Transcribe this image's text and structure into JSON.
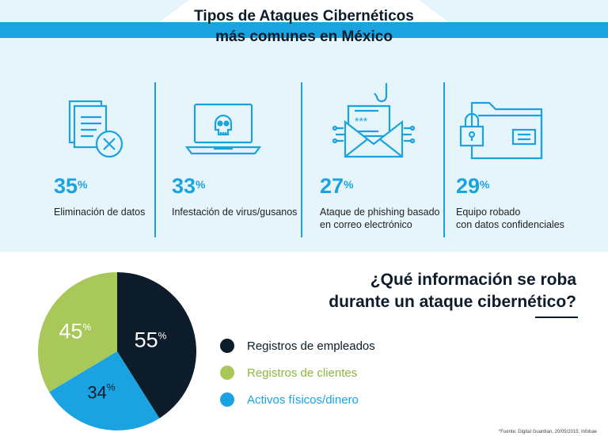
{
  "header": {
    "title_line1": "Tipos de Ataques Cibernéticos",
    "title_line2": "más comunes en México",
    "banner_color": "#1aa3e0"
  },
  "attacks": [
    {
      "value": "35",
      "unit": "%",
      "label_lines": [
        "Eliminación de datos"
      ],
      "icon": "document-delete-icon"
    },
    {
      "value": "33",
      "unit": "%",
      "label_lines": [
        "Infestación de virus/gusanos"
      ],
      "icon": "laptop-skull-icon"
    },
    {
      "value": "27",
      "unit": "%",
      "label_lines": [
        "Ataque de phishing basado",
        "en correo electrónico"
      ],
      "icon": "phishing-email-icon"
    },
    {
      "value": "29",
      "unit": "%",
      "label_lines": [
        "Equipo robado",
        "con datos confidenciales"
      ],
      "icon": "locked-folder-icon"
    }
  ],
  "question": {
    "line1": "¿Qué información se roba",
    "line2": "durante un ataque cibernético?"
  },
  "chart_data": {
    "type": "pie",
    "categories": [
      "Registros de empleados",
      "Registros de clientes",
      "Activos físicos/dinero"
    ],
    "values": [
      55,
      45,
      34
    ],
    "value_unit": "%",
    "colors": [
      "#0d1c2a",
      "#a9c85a",
      "#1aa3e0"
    ],
    "label_colors": [
      "#ffffff",
      "#ffffff",
      "#0d1c2a"
    ],
    "legend_position": "right"
  },
  "footer": {
    "source": "*Fuente: Digital Guardian, 20/05/2015, Infobae"
  }
}
